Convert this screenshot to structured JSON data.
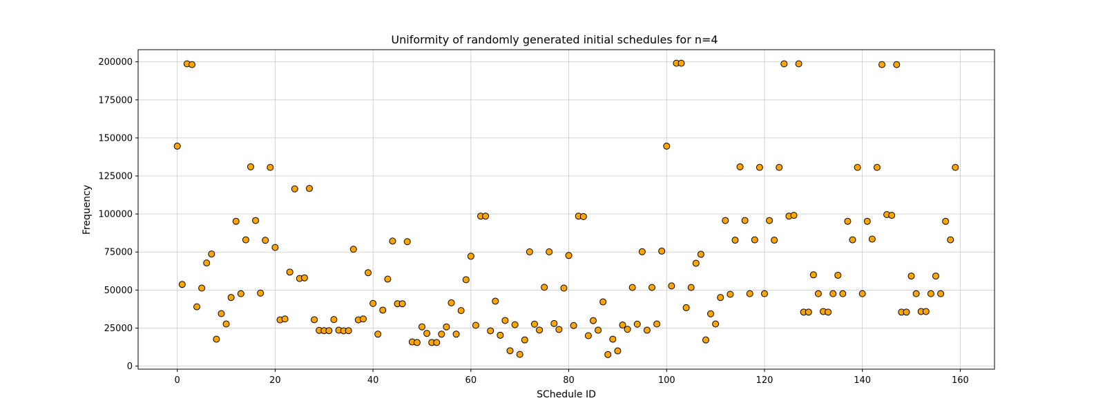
{
  "chart_data": {
    "type": "scatter",
    "title": "Uniformity of randomly generated initial schedules for n=4",
    "xlabel": "SChedule ID",
    "ylabel": "Frequency",
    "xlim": [
      -8,
      167
    ],
    "ylim": [
      -2000,
      208000
    ],
    "xticks": [
      0,
      20,
      40,
      60,
      80,
      100,
      120,
      140,
      160
    ],
    "yticks": [
      0,
      25000,
      50000,
      75000,
      100000,
      125000,
      150000,
      175000,
      200000
    ],
    "grid": true,
    "marker_fill": "#FFA500",
    "marker_edge": "#000000",
    "x": [
      0,
      1,
      2,
      3,
      4,
      5,
      6,
      7,
      8,
      9,
      10,
      11,
      12,
      13,
      14,
      15,
      16,
      17,
      18,
      19,
      20,
      21,
      22,
      23,
      24,
      25,
      26,
      27,
      28,
      29,
      30,
      31,
      32,
      33,
      34,
      35,
      36,
      37,
      38,
      39,
      40,
      41,
      42,
      43,
      44,
      45,
      46,
      47,
      48,
      49,
      50,
      51,
      52,
      53,
      54,
      55,
      56,
      57,
      58,
      59,
      60,
      61,
      62,
      63,
      64,
      65,
      66,
      67,
      68,
      69,
      70,
      71,
      72,
      73,
      74,
      75,
      76,
      77,
      78,
      79,
      80,
      81,
      82,
      83,
      84,
      85,
      86,
      87,
      88,
      89,
      90,
      91,
      92,
      93,
      94,
      95,
      96,
      97,
      98,
      99,
      100,
      101,
      102,
      103,
      104,
      105,
      106,
      107,
      108,
      109,
      110,
      111,
      112,
      113,
      114,
      115,
      116,
      117,
      118,
      119,
      120,
      121,
      122,
      123,
      124,
      125,
      126,
      127,
      128,
      129,
      130,
      131,
      132,
      133,
      134,
      135,
      136,
      137,
      138,
      139,
      140,
      141,
      142,
      143,
      144,
      145,
      146,
      147,
      148,
      149,
      150,
      151,
      152,
      153,
      154,
      155,
      156,
      157,
      158,
      159
    ],
    "y": [
      144600,
      53700,
      198700,
      198200,
      39000,
      51300,
      67800,
      73700,
      17700,
      34500,
      27700,
      45100,
      95200,
      47600,
      83000,
      131000,
      95700,
      48000,
      82700,
      130600,
      78000,
      30400,
      31000,
      61800,
      116500,
      57600,
      58000,
      116800,
      30500,
      23500,
      23300,
      23300,
      30600,
      23600,
      23200,
      23300,
      76800,
      30400,
      31000,
      61400,
      41200,
      21000,
      36800,
      57200,
      82200,
      41000,
      41000,
      81800,
      15900,
      15500,
      25800,
      21500,
      15500,
      15500,
      21000,
      25800,
      41600,
      21000,
      36500,
      56800,
      72200,
      26800,
      98600,
      98600,
      23200,
      42700,
      20300,
      30000,
      10100,
      27200,
      7700,
      17200,
      75100,
      27600,
      23700,
      51800,
      75100,
      28000,
      24100,
      51300,
      72700,
      26700,
      98600,
      98300,
      20000,
      29900,
      23600,
      42200,
      7600,
      17700,
      10000,
      27000,
      24200,
      51700,
      27600,
      75200,
      23600,
      51700,
      27700,
      75600,
      144600,
      52700,
      199100,
      199100,
      38400,
      51700,
      67600,
      73500,
      17200,
      34400,
      27700,
      45100,
      95700,
      47200,
      82800,
      131000,
      95700,
      47600,
      83000,
      130600,
      47600,
      95700,
      82800,
      130600,
      198700,
      98600,
      99100,
      198700,
      35500,
      35500,
      60000,
      47600,
      35900,
      35500,
      47600,
      59700,
      47600,
      95200,
      83000,
      130600,
      47600,
      95200,
      83500,
      130600,
      198200,
      99600,
      99100,
      198200,
      35500,
      35500,
      59200,
      47600,
      35900,
      35900,
      47600,
      59200,
      47600,
      95200,
      83000,
      130600
    ]
  }
}
